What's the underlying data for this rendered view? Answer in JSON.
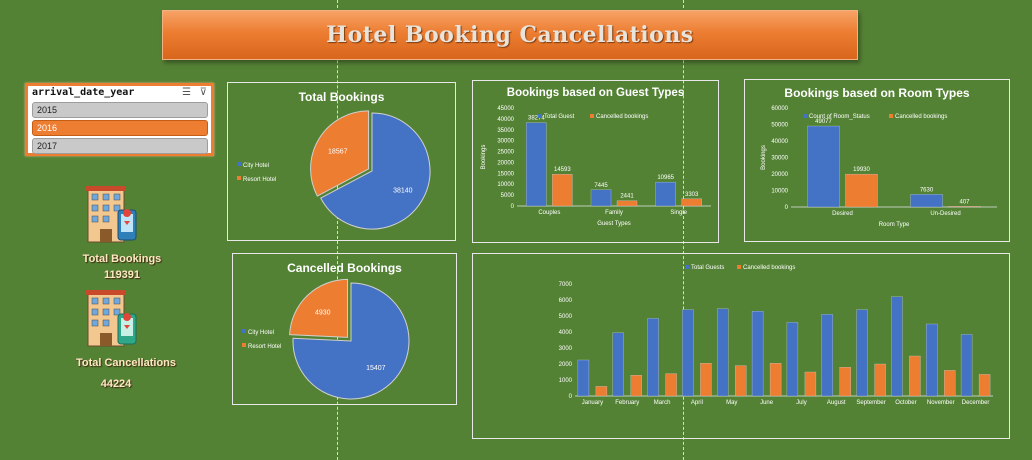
{
  "title": "Hotel Booking Cancellations",
  "slicer": {
    "field": "arrival_date_year",
    "items": [
      "2015",
      "2016",
      "2017"
    ],
    "selected": "2016"
  },
  "kpis": {
    "total_bookings_label": "Total Bookings",
    "total_bookings_value": "119391",
    "total_cancellations_label": "Total Cancellations",
    "total_cancellations_value": "44224"
  },
  "colors": {
    "blue": "#4472c4",
    "orange": "#ed7d31",
    "background": "#548235",
    "accent": "#ec7d31"
  },
  "chart_data": [
    {
      "id": "total_bookings",
      "type": "pie",
      "title": "Total Bookings",
      "categories": [
        "City Hotel",
        "Resort Hotel"
      ],
      "values": [
        38140,
        18567
      ]
    },
    {
      "id": "cancelled_bookings",
      "type": "pie",
      "title": "Cancelled Bookings",
      "categories": [
        "City Hotel",
        "Resort Hotel"
      ],
      "values": [
        15407,
        4930
      ]
    },
    {
      "id": "guest_types",
      "type": "bar",
      "title": "Bookings based on Guest Types",
      "categories": [
        "Couples",
        "Family",
        "Single"
      ],
      "series": [
        {
          "name": "Total Guest",
          "values": [
            38274,
            7445,
            10965
          ],
          "labels": [
            "38274",
            "7445",
            "10965"
          ]
        },
        {
          "name": "Cancelled bookings",
          "values": [
            14593,
            2441,
            3303
          ],
          "labels": [
            "14593",
            "2441",
            "3303"
          ]
        }
      ],
      "xlabel": "Guest Types",
      "ylabel": "Bookings",
      "ylim": [
        0,
        45000
      ],
      "yticks": [
        "0",
        "5000",
        "10000",
        "15000",
        "20000",
        "25000",
        "30000",
        "35000",
        "40000",
        "45000"
      ]
    },
    {
      "id": "room_types",
      "type": "bar",
      "title": "Bookings based on Room Types",
      "categories": [
        "Desired",
        "Un-Desired"
      ],
      "series": [
        {
          "name": "Count of Room_Status",
          "values": [
            49077,
            7630
          ],
          "labels": [
            "49077",
            "7630"
          ]
        },
        {
          "name": "Cancelled bookings",
          "values": [
            19930,
            407
          ],
          "labels": [
            "19930",
            "407"
          ]
        }
      ],
      "xlabel": "Room Type",
      "ylabel": "Bookings",
      "ylim": [
        0,
        60000
      ],
      "yticks": [
        "0",
        "10000",
        "20000",
        "30000",
        "40000",
        "50000",
        "60000"
      ]
    },
    {
      "id": "monthly",
      "type": "bar",
      "title": "",
      "categories": [
        "January",
        "February",
        "March",
        "April",
        "May",
        "June",
        "July",
        "August",
        "September",
        "October",
        "November",
        "December"
      ],
      "series": [
        {
          "name": "Total Guests",
          "values": [
            2250,
            3950,
            4850,
            5400,
            5450,
            5300,
            4600,
            5100,
            5400,
            6200,
            4500,
            3850
          ]
        },
        {
          "name": "Cancelled bookings",
          "values": [
            600,
            1300,
            1400,
            2050,
            1900,
            2050,
            1500,
            1800,
            2000,
            2500,
            1600,
            1350
          ]
        }
      ],
      "xlabel": "",
      "ylabel": "",
      "ylim": [
        0,
        7000
      ],
      "yticks": [
        "0",
        "1000",
        "2000",
        "3000",
        "4000",
        "5000",
        "6000",
        "7000"
      ]
    }
  ]
}
